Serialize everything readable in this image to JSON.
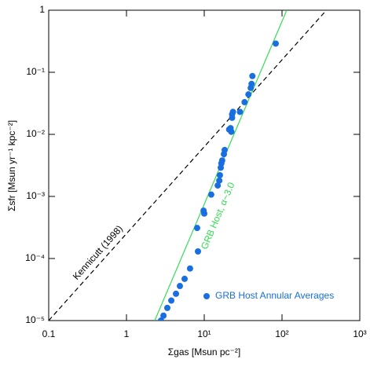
{
  "chart_data": {
    "type": "scatter",
    "x_label": "Σgas [Msun pc⁻²]",
    "y_label": "Σsfr [Msun yr⁻¹ kpc⁻²]",
    "log_x": true,
    "log_y": true,
    "xlim": [
      0.1,
      1000
    ],
    "ylim": [
      1e-05,
      1
    ],
    "xticks": [
      0.1,
      1,
      {
        "value": 10,
        "label": "10¹"
      },
      {
        "value": 100,
        "label": "10²"
      },
      {
        "value": 1000,
        "label": "10³"
      }
    ],
    "yticks": [
      {
        "value": 1e-05,
        "label": "10⁻⁵"
      },
      {
        "value": 0.0001,
        "label": "10⁻⁴"
      },
      {
        "value": 0.001,
        "label": "10⁻³"
      },
      {
        "value": 0.01,
        "label": "10⁻²"
      },
      {
        "value": 0.1,
        "label": "10⁻¹"
      },
      1
    ],
    "series": [
      {
        "name": "GRB Host Annular Averages",
        "color": "#1a6fe0",
        "x": [
          2.78,
          2.99,
          3.35,
          3.77,
          4.33,
          4.86,
          5.59,
          6.57,
          8.1,
          8.3,
          9.8,
          10,
          12.3,
          14.9,
          15.6,
          15.9,
          16.3,
          16.6,
          17.0,
          17.9,
          18.3,
          20.9,
          21.8,
          22.3,
          22.8,
          22.8,
          23.4,
          28.8,
          33,
          37,
          39.6,
          40.6,
          41.6,
          83
        ],
        "values": [
          1e-05,
          1.2e-05,
          1.6e-05,
          2.1e-05,
          2.7e-05,
          3.6e-05,
          4.7e-05,
          6.9e-05,
          0.00031,
          0.00013,
          0.00059,
          0.00053,
          0.00107,
          0.0015,
          0.0018,
          0.0022,
          0.0029,
          0.0034,
          0.0038,
          0.0048,
          0.0056,
          0.012,
          0.0126,
          0.011,
          0.0185,
          0.021,
          0.023,
          0.023,
          0.033,
          0.044,
          0.056,
          0.065,
          0.087,
          0.29
        ]
      }
    ],
    "lines": [
      {
        "label": "Kennicutt (1998)",
        "color": "#000000",
        "dashed": true,
        "x": [
          0.1,
          372
        ],
        "values": [
          1e-05,
          1
        ]
      },
      {
        "label": "GRB Host, α~3.0",
        "color": "#33dd55",
        "dashed": false,
        "x": [
          2.31,
          115
        ],
        "values": [
          1e-05,
          1
        ]
      }
    ]
  }
}
